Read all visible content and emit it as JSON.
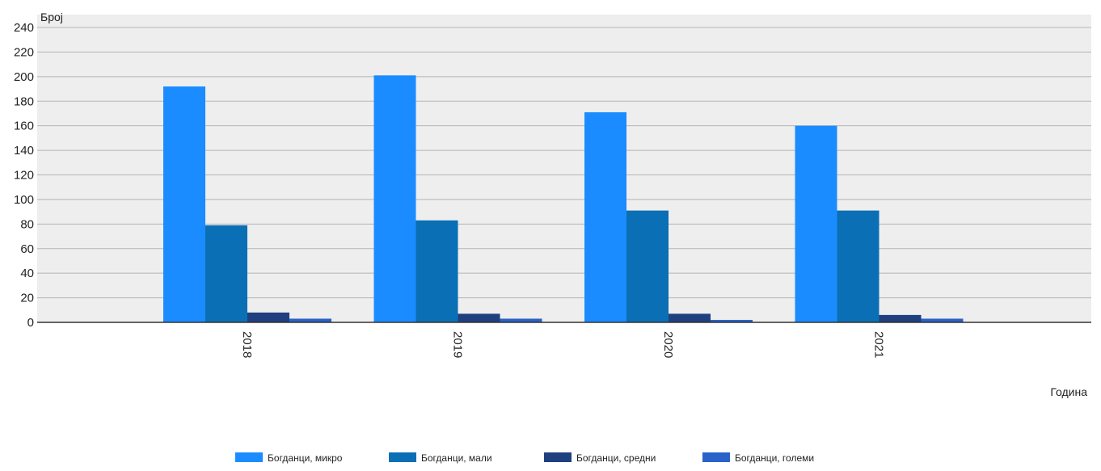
{
  "chart_data": {
    "type": "bar",
    "title": "",
    "xlabel": "Година",
    "ylabel": "Број",
    "categories": [
      "2018",
      "2019",
      "2020",
      "2021"
    ],
    "series": [
      {
        "name": "Богданци, микро",
        "values": [
          192,
          201,
          171,
          160
        ]
      },
      {
        "name": "Богданци, мали",
        "values": [
          79,
          83,
          91,
          91
        ]
      },
      {
        "name": "Богданци, средни",
        "values": [
          8,
          7,
          7,
          6
        ]
      },
      {
        "name": "Богданци, големи",
        "values": [
          3,
          3,
          2,
          3
        ]
      }
    ],
    "ylim": [
      0,
      240
    ],
    "yticks": [
      0,
      20,
      40,
      60,
      80,
      100,
      120,
      140,
      160,
      180,
      200,
      220,
      240
    ],
    "grid": true,
    "legend_position": "bottom-center",
    "plot_background": "#eeeeee",
    "colors": [
      "#1a8cff",
      "#0a6fb5",
      "#1f3f7f",
      "#2962c8"
    ]
  }
}
